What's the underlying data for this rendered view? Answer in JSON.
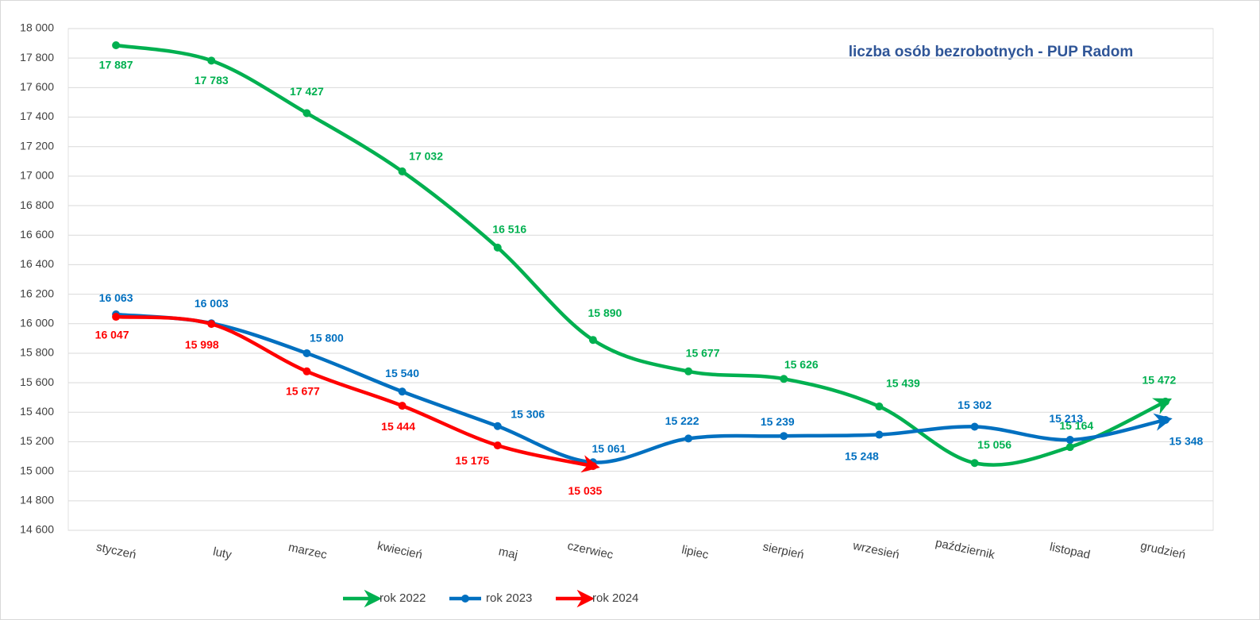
{
  "chart_data": {
    "type": "line",
    "title": "liczba osób bezrobotnych - PUP Radom",
    "categories": [
      "styczeń",
      "luty",
      "marzec",
      "kwiecień",
      "maj",
      "czerwiec",
      "lipiec",
      "sierpień",
      "wrzesień",
      "październik",
      "listopad",
      "grudzień"
    ],
    "series": [
      {
        "name": "rok 2022",
        "color": "#00b050",
        "values": [
          17887,
          17783,
          17427,
          17032,
          16516,
          15890,
          15677,
          15626,
          15439,
          15056,
          15164,
          15472
        ],
        "value_labels": [
          "17 887",
          "17 783",
          "17 427",
          "17 032",
          "16 516",
          "15 890",
          "15 677",
          "15 626",
          "15 439",
          "15 056",
          "15 164",
          "15 472"
        ]
      },
      {
        "name": "rok 2023",
        "color": "#0070c0",
        "values": [
          16063,
          16003,
          15800,
          15540,
          15306,
          15061,
          15222,
          15239,
          15248,
          15302,
          15213,
          15348
        ],
        "value_labels": [
          "16 063",
          "16 003",
          "15 800",
          "15 540",
          "15 306",
          "15 061",
          "15 222",
          "15 239",
          "15 248",
          "15 302",
          "15 213",
          "15 348"
        ]
      },
      {
        "name": "rok 2024",
        "color": "#ff0000",
        "values": [
          16047,
          15998,
          15677,
          15444,
          15175,
          15035,
          null,
          null,
          null,
          null,
          null,
          null
        ],
        "value_labels": [
          "16 047",
          "15 998",
          "15 677",
          "15 444",
          "15 175",
          "15 035",
          null,
          null,
          null,
          null,
          null,
          null
        ]
      }
    ],
    "ylim": [
      14600,
      18000
    ],
    "yticks": [
      {
        "value": 14600,
        "label": "14 600"
      },
      {
        "value": 14800,
        "label": "14 800"
      },
      {
        "value": 15000,
        "label": "15 000"
      },
      {
        "value": 15200,
        "label": "15 200"
      },
      {
        "value": 15400,
        "label": "15 400"
      },
      {
        "value": 15600,
        "label": "15 600"
      },
      {
        "value": 15800,
        "label": "15 800"
      },
      {
        "value": 16000,
        "label": "16 000"
      },
      {
        "value": 16200,
        "label": "16 200"
      },
      {
        "value": 16400,
        "label": "16 400"
      },
      {
        "value": 16600,
        "label": "16 600"
      },
      {
        "value": 16800,
        "label": "16 800"
      },
      {
        "value": 17000,
        "label": "17 000"
      },
      {
        "value": 17200,
        "label": "17 200"
      },
      {
        "value": 17400,
        "label": "17 400"
      },
      {
        "value": 17600,
        "label": "17 600"
      },
      {
        "value": 17800,
        "label": "17 800"
      },
      {
        "value": 18000,
        "label": "18 000"
      }
    ],
    "grid": true,
    "legend": "bottom"
  }
}
